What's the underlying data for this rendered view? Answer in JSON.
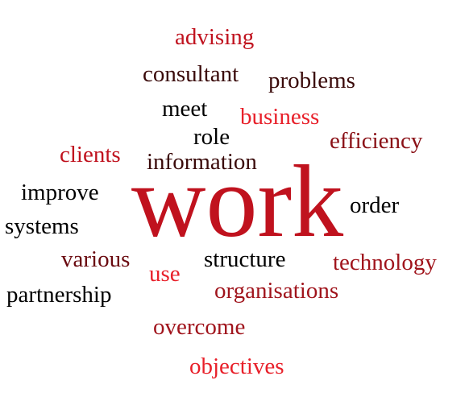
{
  "words": [
    {
      "text": "advising",
      "color": "#c0121e"
    },
    {
      "text": "consultant",
      "color": "#3a0a0a"
    },
    {
      "text": "problems",
      "color": "#3a0a0a"
    },
    {
      "text": "meet",
      "color": "#000000"
    },
    {
      "text": "business",
      "color": "#e8202a"
    },
    {
      "text": "role",
      "color": "#000000"
    },
    {
      "text": "efficiency",
      "color": "#8a1016"
    },
    {
      "text": "clients",
      "color": "#c0121e"
    },
    {
      "text": "information",
      "color": "#3a0a0a"
    },
    {
      "text": "improve",
      "color": "#000000"
    },
    {
      "text": "work",
      "color": "#c0121e"
    },
    {
      "text": "order",
      "color": "#000000"
    },
    {
      "text": "systems",
      "color": "#000000"
    },
    {
      "text": "various",
      "color": "#6a0a10"
    },
    {
      "text": "structure",
      "color": "#000000"
    },
    {
      "text": "technology",
      "color": "#a0141c"
    },
    {
      "text": "use",
      "color": "#e8202a"
    },
    {
      "text": "organisations",
      "color": "#a0141c"
    },
    {
      "text": "partnership",
      "color": "#000000"
    },
    {
      "text": "overcome",
      "color": "#a0141c"
    },
    {
      "text": "objectives",
      "color": "#e8202a"
    }
  ]
}
